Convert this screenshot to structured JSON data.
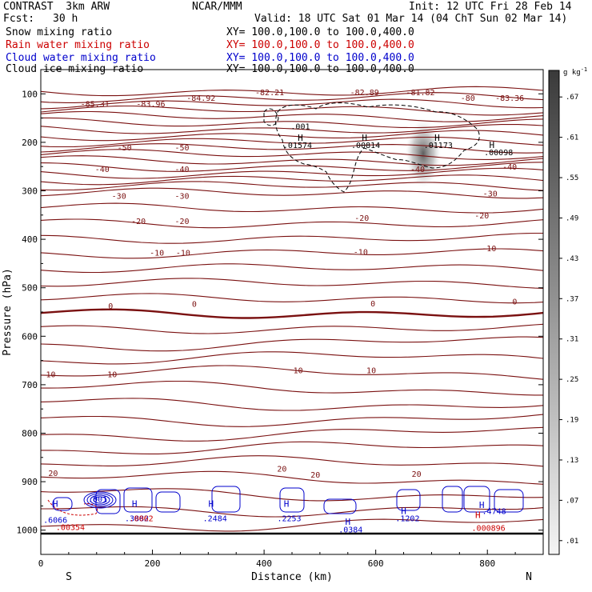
{
  "header": {
    "model": "CONTRAST  3km ARW",
    "org": "NCAR/MMM",
    "init": "Init: 12 UTC Fri 28 Feb 14",
    "fcst_label": "Fcst:",
    "fcst_value": "30 h",
    "valid": "Valid: 18 UTC Sat 01 Mar 14 (04 ChT Sun 02 Mar 14)",
    "fields": [
      {
        "name": "Snow mixing ratio",
        "xy": "XY= 100.0,100.0 to 100.0,400.0",
        "color": "#000000"
      },
      {
        "name": "Rain water mixing ratio",
        "xy": "XY= 100.0,100.0 to 100.0,400.0",
        "color": "#cc0000"
      },
      {
        "name": "Cloud water mixing ratio",
        "xy": "XY= 100.0,100.0 to 100.0,400.0",
        "color": "#0000cc"
      },
      {
        "name": "Cloud ice mixing ratio",
        "xy": "XY= 100.0,100.0 to 100.0,400.0",
        "color": "#000000"
      }
    ]
  },
  "chart_data": {
    "type": "contour",
    "xlabel": "Distance (km)",
    "ylabel": "Pressure (hPa)",
    "xlim": [
      0,
      900
    ],
    "ylim": [
      1050,
      50
    ],
    "x_ticks": [
      0,
      200,
      400,
      600,
      800
    ],
    "y_ticks": [
      100,
      200,
      300,
      400,
      500,
      600,
      700,
      800,
      900,
      1000
    ],
    "x_end_labels": {
      "left": "S",
      "right": "N"
    },
    "colorbar": {
      "unit": "g kg",
      "unit_exp": "-1",
      "ticks": [
        ".01",
        ".07",
        ".13",
        ".19",
        ".25",
        ".31",
        ".37",
        ".43",
        ".49",
        ".55",
        ".61",
        ".67"
      ]
    },
    "temperature_labels": [
      {
        "text": "-85.31",
        "x": 97,
        "p": 120
      },
      {
        "text": "-83.96",
        "x": 197,
        "p": 120
      },
      {
        "text": "-84.92",
        "x": 287,
        "p": 108
      },
      {
        "text": "-82.21",
        "x": 410,
        "p": 96
      },
      {
        "text": "-82.89",
        "x": 580,
        "p": 96
      },
      {
        "text": "-81.82",
        "x": 680,
        "p": 96
      },
      {
        "text": "-80",
        "x": 765,
        "p": 108
      },
      {
        "text": "-83.36",
        "x": 840,
        "p": 108
      },
      {
        "text": "-50",
        "x": 150,
        "p": 210
      },
      {
        "text": "-50",
        "x": 253,
        "p": 210
      },
      {
        "text": "-40",
        "x": 110,
        "p": 255
      },
      {
        "text": "-40",
        "x": 253,
        "p": 255
      },
      {
        "text": "-40",
        "x": 675,
        "p": 255
      },
      {
        "text": "-40",
        "x": 840,
        "p": 250
      },
      {
        "text": "-30",
        "x": 140,
        "p": 310
      },
      {
        "text": "-30",
        "x": 253,
        "p": 310
      },
      {
        "text": "-30",
        "x": 805,
        "p": 305
      },
      {
        "text": "-20",
        "x": 175,
        "p": 362
      },
      {
        "text": "-20",
        "x": 253,
        "p": 362
      },
      {
        "text": "-20",
        "x": 575,
        "p": 355
      },
      {
        "text": "-20",
        "x": 790,
        "p": 350
      },
      {
        "text": "-10",
        "x": 208,
        "p": 427
      },
      {
        "text": "-10",
        "x": 255,
        "p": 427
      },
      {
        "text": "-10",
        "x": 573,
        "p": 425
      },
      {
        "text": "-10",
        "x": 803,
        "p": 418
      },
      {
        "text": "0",
        "x": 125,
        "p": 537
      },
      {
        "text": "0",
        "x": 275,
        "p": 533
      },
      {
        "text": "0",
        "x": 595,
        "p": 532
      },
      {
        "text": "0",
        "x": 849,
        "p": 528
      },
      {
        "text": "10",
        "x": 18,
        "p": 678
      },
      {
        "text": "10",
        "x": 128,
        "p": 678
      },
      {
        "text": "10",
        "x": 461,
        "p": 670
      },
      {
        "text": "10",
        "x": 592,
        "p": 670
      },
      {
        "text": "20",
        "x": 22,
        "p": 882
      },
      {
        "text": "20",
        "x": 432,
        "p": 873
      },
      {
        "text": "20",
        "x": 492,
        "p": 885
      },
      {
        "text": "20",
        "x": 673,
        "p": 883
      }
    ],
    "cloud_ice_maxima": [
      {
        "text": ".001",
        "x": 465,
        "p": 166,
        "kind": "value"
      },
      {
        "text": "H",
        "x": 465,
        "p": 190,
        "kind": "H"
      },
      {
        "text": ".01574",
        "x": 460,
        "p": 205,
        "kind": "value"
      },
      {
        "text": "H",
        "x": 580,
        "p": 190,
        "kind": "H"
      },
      {
        "text": ".00814",
        "x": 582,
        "p": 205,
        "kind": "value"
      },
      {
        "text": "H",
        "x": 710,
        "p": 190,
        "kind": "H"
      },
      {
        "text": ".01173",
        "x": 712,
        "p": 205,
        "kind": "value"
      },
      {
        "text": "H",
        "x": 808,
        "p": 205,
        "kind": "H"
      },
      {
        "text": ".00098",
        "x": 820,
        "p": 220,
        "kind": "value"
      }
    ],
    "cloud_water_maxima": [
      {
        "text": "H",
        "x": 26,
        "p": 945,
        "kind": "H"
      },
      {
        "text": ".6066",
        "x": 26,
        "p": 978,
        "kind": "value"
      },
      {
        "text": ".001",
        "x": 102,
        "p": 935,
        "kind": "value"
      },
      {
        "text": "H",
        "x": 168,
        "p": 945,
        "kind": "H"
      },
      {
        "text": ".3882",
        "x": 172,
        "p": 975,
        "kind": "value"
      },
      {
        "text": "H",
        "x": 305,
        "p": 945,
        "kind": "H"
      },
      {
        "text": ".2484",
        "x": 312,
        "p": 975,
        "kind": "value"
      },
      {
        "text": "H",
        "x": 440,
        "p": 945,
        "kind": "H"
      },
      {
        "text": ".2253",
        "x": 445,
        "p": 975,
        "kind": "value"
      },
      {
        "text": "H",
        "x": 550,
        "p": 982,
        "kind": "H"
      },
      {
        "text": ".0384",
        "x": 555,
        "p": 998,
        "kind": "value"
      },
      {
        "text": "H",
        "x": 650,
        "p": 960,
        "kind": "H"
      },
      {
        "text": ".1202",
        "x": 657,
        "p": 975,
        "kind": "value"
      },
      {
        "text": "H",
        "x": 790,
        "p": 948,
        "kind": "H"
      },
      {
        "text": ".4748",
        "x": 812,
        "p": 960,
        "kind": "value"
      }
    ],
    "rain_maxima": [
      {
        "text": ".00354",
        "x": 53,
        "p": 993,
        "kind": "value"
      },
      {
        "text": ".0062",
        "x": 180,
        "p": 975,
        "kind": "value"
      },
      {
        "text": "H",
        "x": 783,
        "p": 968,
        "kind": "H"
      },
      {
        "text": ".000896",
        "x": 802,
        "p": 995,
        "kind": "value"
      }
    ]
  }
}
